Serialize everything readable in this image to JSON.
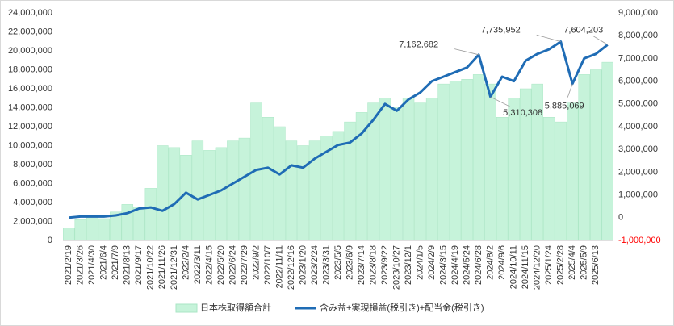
{
  "chart_data": {
    "type": "bar_line",
    "categories": [
      "2021/2/19",
      "2021/3/26",
      "2021/4/30",
      "2021/6/4",
      "2021/7/9",
      "2021/8/13",
      "2021/9/17",
      "2021/10/22",
      "2021/11/26",
      "2021/12/31",
      "2022/2/4",
      "2022/3/11",
      "2022/4/15",
      "2022/5/20",
      "2022/6/24",
      "2022/7/29",
      "2022/9/2",
      "2022/10/7",
      "2022/11/11",
      "2022/12/16",
      "2023/1/20",
      "2023/2/24",
      "2023/3/31",
      "2023/5/5",
      "2023/6/9",
      "2023/7/14",
      "2023/8/18",
      "2023/9/22",
      "2023/10/27",
      "2023/12/1",
      "2024/1/5",
      "2024/2/9",
      "2024/3/15",
      "2024/4/19",
      "2024/5/24",
      "2024/6/28",
      "2024/8/2",
      "2024/9/6",
      "2024/10/11",
      "2024/11/15",
      "2024/12/20",
      "2025/1/24",
      "2025/2/28",
      "2025/4/4",
      "2025/5/9",
      "2025/6/13",
      null
    ],
    "series": [
      {
        "name": "日本株取得額合計",
        "color": "#c6f3da",
        "axis": "y",
        "values": [
          1300000,
          2200000,
          2500000,
          2300000,
          3000000,
          3800000,
          3500000,
          5500000,
          10000000,
          9800000,
          9000000,
          10500000,
          9500000,
          9800000,
          10500000,
          10800000,
          14500000,
          13000000,
          12000000,
          10500000,
          10000000,
          10500000,
          11000000,
          11500000,
          12500000,
          13500000,
          14500000,
          15000000,
          14000000,
          15000000,
          14500000,
          15000000,
          16500000,
          16800000,
          17000000,
          17500000,
          16500000,
          13000000,
          15000000,
          16000000,
          16500000,
          13000000,
          12500000,
          14500000,
          17500000,
          18000000,
          18800000
        ]
      },
      {
        "name": "含み益+実現損益(税引き)+配当金(税引き)",
        "color": "#1f6cb5",
        "axis": "y2",
        "values": [
          0,
          50000,
          50000,
          50000,
          100000,
          200000,
          400000,
          450000,
          300000,
          600000,
          1100000,
          800000,
          1000000,
          1200000,
          1500000,
          1800000,
          2100000,
          2200000,
          1900000,
          2300000,
          2200000,
          2600000,
          2900000,
          3200000,
          3300000,
          3700000,
          4300000,
          5000000,
          4700000,
          5200000,
          5500000,
          6000000,
          6200000,
          6400000,
          6600000,
          7162682,
          5310308,
          6200000,
          6000000,
          6900000,
          7200000,
          7400000,
          7735952,
          5885069,
          7000000,
          7200000,
          7604203
        ]
      }
    ],
    "annotations": [
      {
        "x": "2024/6/28",
        "value": 7162682,
        "label": "7,162,682"
      },
      {
        "x": "2024/8/2",
        "value": 5310308,
        "label": "5,310,308"
      },
      {
        "x": "2025/2/28",
        "value": 7735952,
        "label": "7,735,952"
      },
      {
        "x": "2025/4/4",
        "value": 5885069,
        "label": "5,885,069"
      },
      {
        "value": 7604203,
        "label": "7,604,203"
      }
    ],
    "ylim": [
      0,
      24000000
    ],
    "yticks": [
      0,
      {
        "value": 2000000,
        "label": "2,000,000"
      },
      {
        "value": 4000000,
        "label": "4,000,000"
      },
      {
        "value": 6000000,
        "label": "6,000,000"
      },
      {
        "value": 8000000,
        "label": "8,000,000"
      },
      {
        "value": 10000000,
        "label": "10,000,000"
      },
      {
        "value": 12000000,
        "label": "12,000,000"
      },
      {
        "value": 14000000,
        "label": "14,000,000"
      },
      {
        "value": 16000000,
        "label": "16,000,000"
      },
      {
        "value": 18000000,
        "label": "18,000,000"
      },
      {
        "value": 20000000,
        "label": "20,000,000"
      },
      {
        "value": 22000000,
        "label": "22,000,000"
      },
      {
        "value": 24000000,
        "label": "24,000,000"
      }
    ],
    "y2lim": [
      -1000000,
      9000000
    ],
    "y2ticks": [
      {
        "value": -1000000,
        "label": "-1,000,000"
      },
      0,
      {
        "value": 1000000,
        "label": "1,000,000"
      },
      {
        "value": 2000000,
        "label": "2,000,000"
      },
      {
        "value": 3000000,
        "label": "3,000,000"
      },
      {
        "value": 4000000,
        "label": "4,000,000"
      },
      {
        "value": 5000000,
        "label": "5,000,000"
      },
      {
        "value": 6000000,
        "label": "6,000,000"
      },
      {
        "value": 7000000,
        "label": "7,000,000"
      },
      {
        "value": 8000000,
        "label": "8,000,000"
      },
      {
        "value": 9000000,
        "label": "9,000,000"
      }
    ],
    "negative_tick_color": "#ff0000",
    "legend": "bottom"
  }
}
